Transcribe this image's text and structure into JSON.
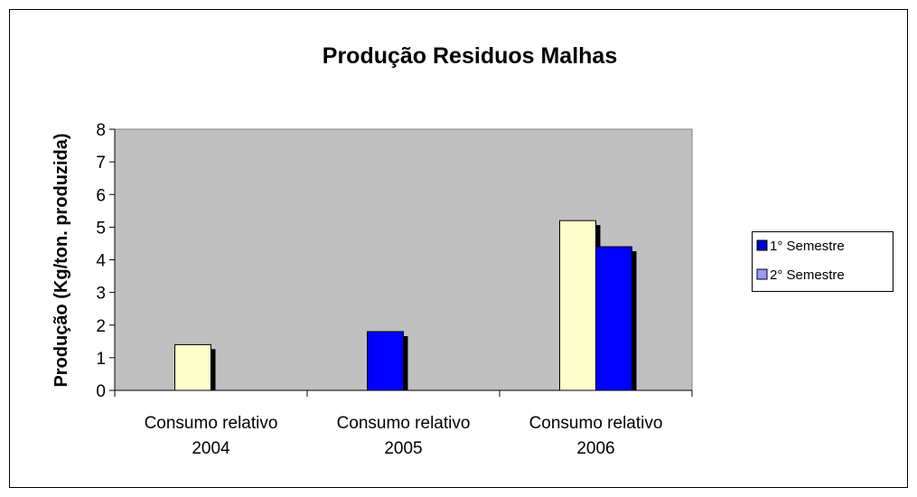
{
  "chart_data": {
    "type": "bar",
    "title": "Produção Residuos Malhas",
    "y_label": "Produção (Kg/ton. produzida)",
    "categories": [
      "Consumo relativo 2004",
      "Consumo relativo 2005",
      "Consumo relativo 2006"
    ],
    "series": [
      {
        "name": "1° Semestre",
        "color": "#0000cc",
        "point_colors": [
          "#ffffcc",
          "#0000ff",
          "#ffffcc"
        ],
        "values": [
          1.4,
          1.8,
          5.2
        ]
      },
      {
        "name": "2° Semestre",
        "color": "#9999ff",
        "point_colors": [
          null,
          null,
          "#0000ff"
        ],
        "values": [
          null,
          null,
          4.4
        ]
      }
    ],
    "ylim": [
      0,
      8
    ],
    "yticks": [
      0,
      1,
      2,
      3,
      4,
      5,
      6,
      7,
      8
    ],
    "plot_background": "#c0c0c0",
    "legend": "right"
  }
}
